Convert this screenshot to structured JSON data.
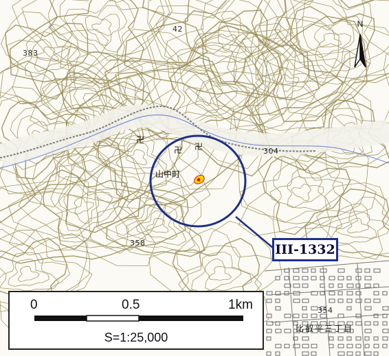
{
  "map": {
    "elevations": [
      "42",
      "383",
      "304",
      "358",
      "354"
    ],
    "places": [
      "山中町",
      "比叡平三丁目"
    ],
    "site_number": "III-1332",
    "north_label": "N",
    "scale": {
      "ticks": [
        "0",
        "0.5",
        "1km"
      ],
      "ratio": "S=1:25,000"
    },
    "colors": {
      "contour": "#9b8e5a",
      "river": "#7b8fd6",
      "circle": "#1c2f8a",
      "site_fill": "#ffd200",
      "site_mark": "#e01010"
    }
  }
}
